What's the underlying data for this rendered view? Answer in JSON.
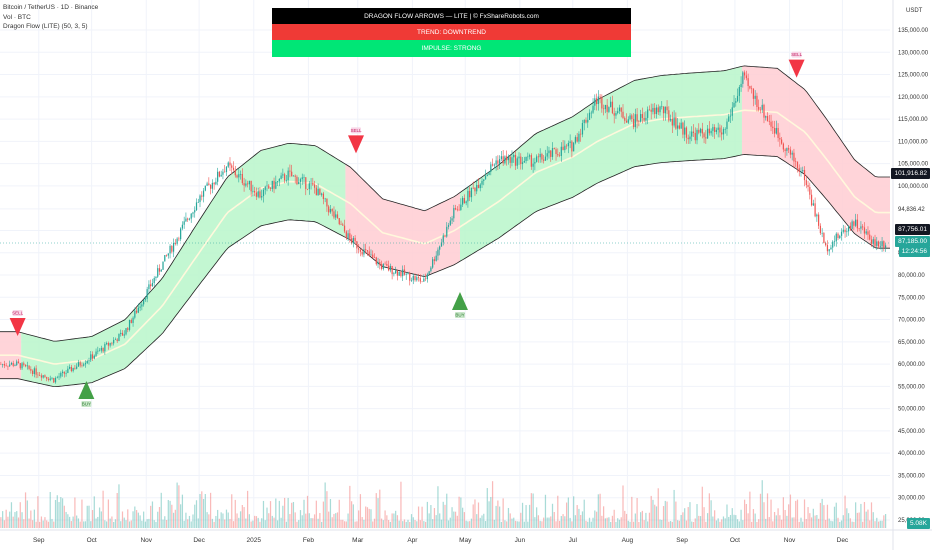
{
  "legend": {
    "symbol": "Bitcoin / TetherUS · 1D · Binance",
    "vol": "Vol · BTC",
    "indicator": "Dragon Flow (LITE) (50, 3, 5)"
  },
  "banner": {
    "title": "DRAGON FLOW ARROWS — LITE   |   © FxShareRobots.com",
    "trend": "TREND: DOWNTREND",
    "impulse": "IMPULSE: STRONG"
  },
  "axis": {
    "unit": "USDT",
    "price_ticks": [
      "135,000.00",
      "130,000.00",
      "125,000.00",
      "120,000.00",
      "115,000.00",
      "110,000.00",
      "105,000.00",
      "100,000.00",
      "94,836.42",
      "90,000.00",
      "85,000.00",
      "80,000.00",
      "75,000.00",
      "70,000.00",
      "65,000.00",
      "60,000.00",
      "55,000.00",
      "50,000.00",
      "45,000.00",
      "40,000.00",
      "35,000.00",
      "30,000.00",
      "25,000.00"
    ],
    "time_ticks": [
      "Sep",
      "Oct",
      "Nov",
      "Dec",
      "2025",
      "Feb",
      "Mar",
      "Apr",
      "May",
      "Jun",
      "Jul",
      "Aug",
      "Sep",
      "Oct",
      "Nov",
      "Dec"
    ]
  },
  "tags": {
    "price_a": "101,916.82",
    "price_b": "87,756.01",
    "last": "87,185.00",
    "countdown": "12:24:56",
    "volume": "5.08K"
  },
  "colors": {
    "up": "#26a69a",
    "down": "#ef5350",
    "band_green": "#b9f6ca",
    "band_red": "#ffcdd2",
    "buy": "#43a047",
    "sell": "#f23645"
  },
  "chart_data": {
    "type": "candlestick",
    "x": [
      "2024-08-20",
      "2024-09-10",
      "2024-10-01",
      "2024-10-20",
      "2024-11-10",
      "2024-12-01",
      "2024-12-17",
      "2025-01-05",
      "2025-01-21",
      "2025-02-05",
      "2025-02-25",
      "2025-03-15",
      "2025-04-08",
      "2025-04-25",
      "2025-05-20",
      "2025-06-10",
      "2025-07-01",
      "2025-07-15",
      "2025-08-05",
      "2025-08-20",
      "2025-09-05",
      "2025-09-25",
      "2025-10-06",
      "2025-10-25",
      "2025-11-10",
      "2025-11-22",
      "2025-12-08",
      "2025-12-20"
    ],
    "close": [
      60000,
      56500,
      61500,
      67000,
      82000,
      97000,
      104500,
      98000,
      102500,
      99500,
      88000,
      82000,
      78500,
      94000,
      106000,
      105500,
      109000,
      119500,
      114500,
      117500,
      111500,
      112000,
      124000,
      112000,
      102000,
      86000,
      92000,
      87185
    ],
    "band_mid": [
      62000,
      60000,
      61000,
      64500,
      73000,
      85000,
      94000,
      99500,
      101000,
      100500,
      96000,
      89500,
      87000,
      90000,
      96500,
      103000,
      106500,
      110000,
      114000,
      115000,
      115500,
      116000,
      117000,
      116500,
      112000,
      106000,
      97500,
      94000
    ],
    "arrows": [
      {
        "type": "SELL",
        "date": "2024-08-20",
        "price": 69000
      },
      {
        "type": "BUY",
        "date": "2024-09-28",
        "price": 53500
      },
      {
        "type": "SELL",
        "date": "2025-02-28",
        "price": 110000
      },
      {
        "type": "BUY",
        "date": "2025-04-28",
        "price": 73500
      },
      {
        "type": "SELL",
        "date": "2025-11-05",
        "price": 127000
      }
    ],
    "y_range": [
      25000,
      135000
    ],
    "has_volume": true
  }
}
